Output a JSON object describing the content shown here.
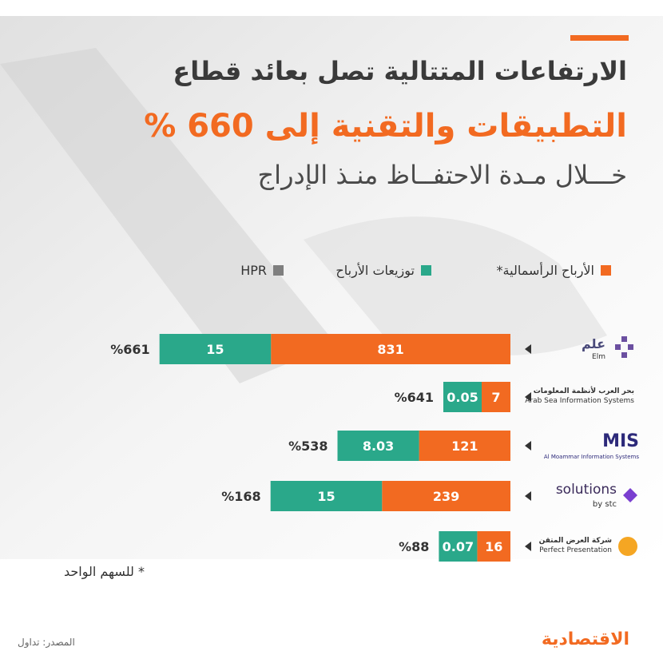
{
  "header": {
    "title_line1": "الارتفاعات المتتالية تصل بعائد قطاع",
    "title_line2": "التطبيقات والتقنية إلى 660 %",
    "title_line3": "خـــلال مـدة الاحتفــاظ منـذ الإدراج"
  },
  "legend": [
    {
      "label": "الأرباح الرأسمالية*",
      "color": "#f26a21"
    },
    {
      "label": "توزيعات الأرباح",
      "color": "#2aa88a"
    },
    {
      "label": "HPR",
      "color": "#7f7f7f"
    }
  ],
  "companies": [
    {
      "name": "علم",
      "sub": "Elm"
    },
    {
      "name": "بحر العرب لأنظمة المعلومات",
      "sub": "Arab Sea Information Systems"
    },
    {
      "name": "MIS",
      "sub": "Al Moammar Information Systems"
    },
    {
      "name": "solutions",
      "sub": "by stc"
    },
    {
      "name": "شركة العرض المتقن",
      "sub": "Perfect Presentation"
    }
  ],
  "chart_data": {
    "type": "bar",
    "orientation": "horizontal-stacked",
    "categories": [
      "علم",
      "بحر العرب لأنظمة المعلومات",
      "MIS",
      "solutions by stc",
      "شركة العرض المتقن"
    ],
    "series": [
      {
        "name": "الأرباح الرأسمالية*",
        "values": [
          831,
          7,
          121,
          239,
          16
        ],
        "labels": [
          "831",
          "7",
          "121",
          "239",
          "16"
        ],
        "color": "#f26a21"
      },
      {
        "name": "توزيعات الأرباح",
        "values": [
          15,
          0.05,
          8.03,
          15,
          0.07
        ],
        "labels": [
          "15",
          "0.05",
          "8.03",
          "15",
          "0.07"
        ],
        "color": "#2aa88a"
      }
    ],
    "hpr": {
      "name": "HPR",
      "labels": [
        "%661",
        "%641",
        "%538",
        "%168",
        "%88"
      ],
      "color": "#7f7f7f"
    }
  },
  "footnote": "* للسهم الواحد",
  "source": "المصدر: تداول",
  "brand": "الاقتصادية"
}
